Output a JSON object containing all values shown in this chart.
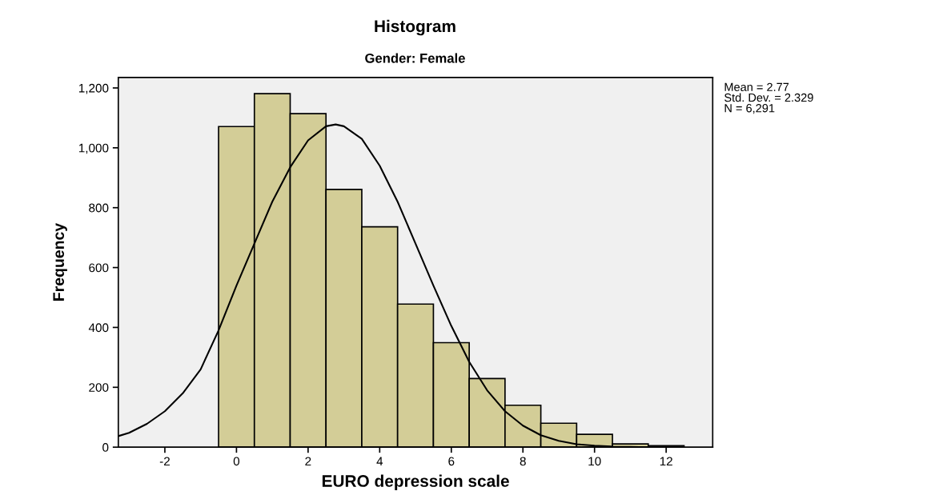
{
  "chart_data": {
    "type": "histogram",
    "title": "Histogram",
    "subtitle": "Gender: Female",
    "xlabel": "EURO depression scale",
    "ylabel": "Frequency",
    "bins": [
      -0.5,
      0.5,
      1.5,
      2.5,
      3.5,
      4.5,
      5.5,
      6.5,
      7.5,
      8.5,
      9.5,
      10.5,
      11.5,
      12.5
    ],
    "values": [
      1071,
      1181,
      1114,
      861,
      736,
      478,
      349,
      229,
      140,
      80,
      43,
      11,
      5
    ],
    "color": "#d3cd97",
    "series": [
      {
        "type": "line",
        "color": "#000000",
        "x": [
          -3.3,
          -3,
          -2.5,
          -2,
          -1.5,
          -1,
          -0.5,
          0,
          0.5,
          1,
          1.5,
          2,
          2.5,
          2.77,
          3,
          3.5,
          4,
          4.5,
          5,
          5.5,
          6,
          6.5,
          7,
          7.5,
          8,
          8.5,
          9,
          9.5,
          10,
          10.5,
          11,
          11.5,
          12
        ],
        "values": [
          37,
          48,
          78,
          120,
          180,
          260,
          390,
          540,
          680,
          820,
          935,
          1025,
          1072,
          1078,
          1072,
          1030,
          940,
          820,
          680,
          540,
          405,
          285,
          190,
          120,
          72,
          40,
          21,
          10,
          5,
          2,
          1,
          0,
          0
        ]
      }
    ],
    "xlim": [
      -3.3,
      13.3
    ],
    "xticks": [
      -2,
      0,
      2,
      4,
      6,
      8,
      10,
      12
    ],
    "ylim": [
      0,
      1235
    ],
    "yticks": [
      0,
      200,
      400,
      600,
      800,
      {
        "value": 1000,
        "label": "1,000"
      },
      {
        "value": 1200,
        "label": "1,200"
      }
    ],
    "grid": false,
    "annotations": [
      "Mean = 2.77",
      "Std. Dev. = 2.329",
      "N = 6,291"
    ]
  }
}
